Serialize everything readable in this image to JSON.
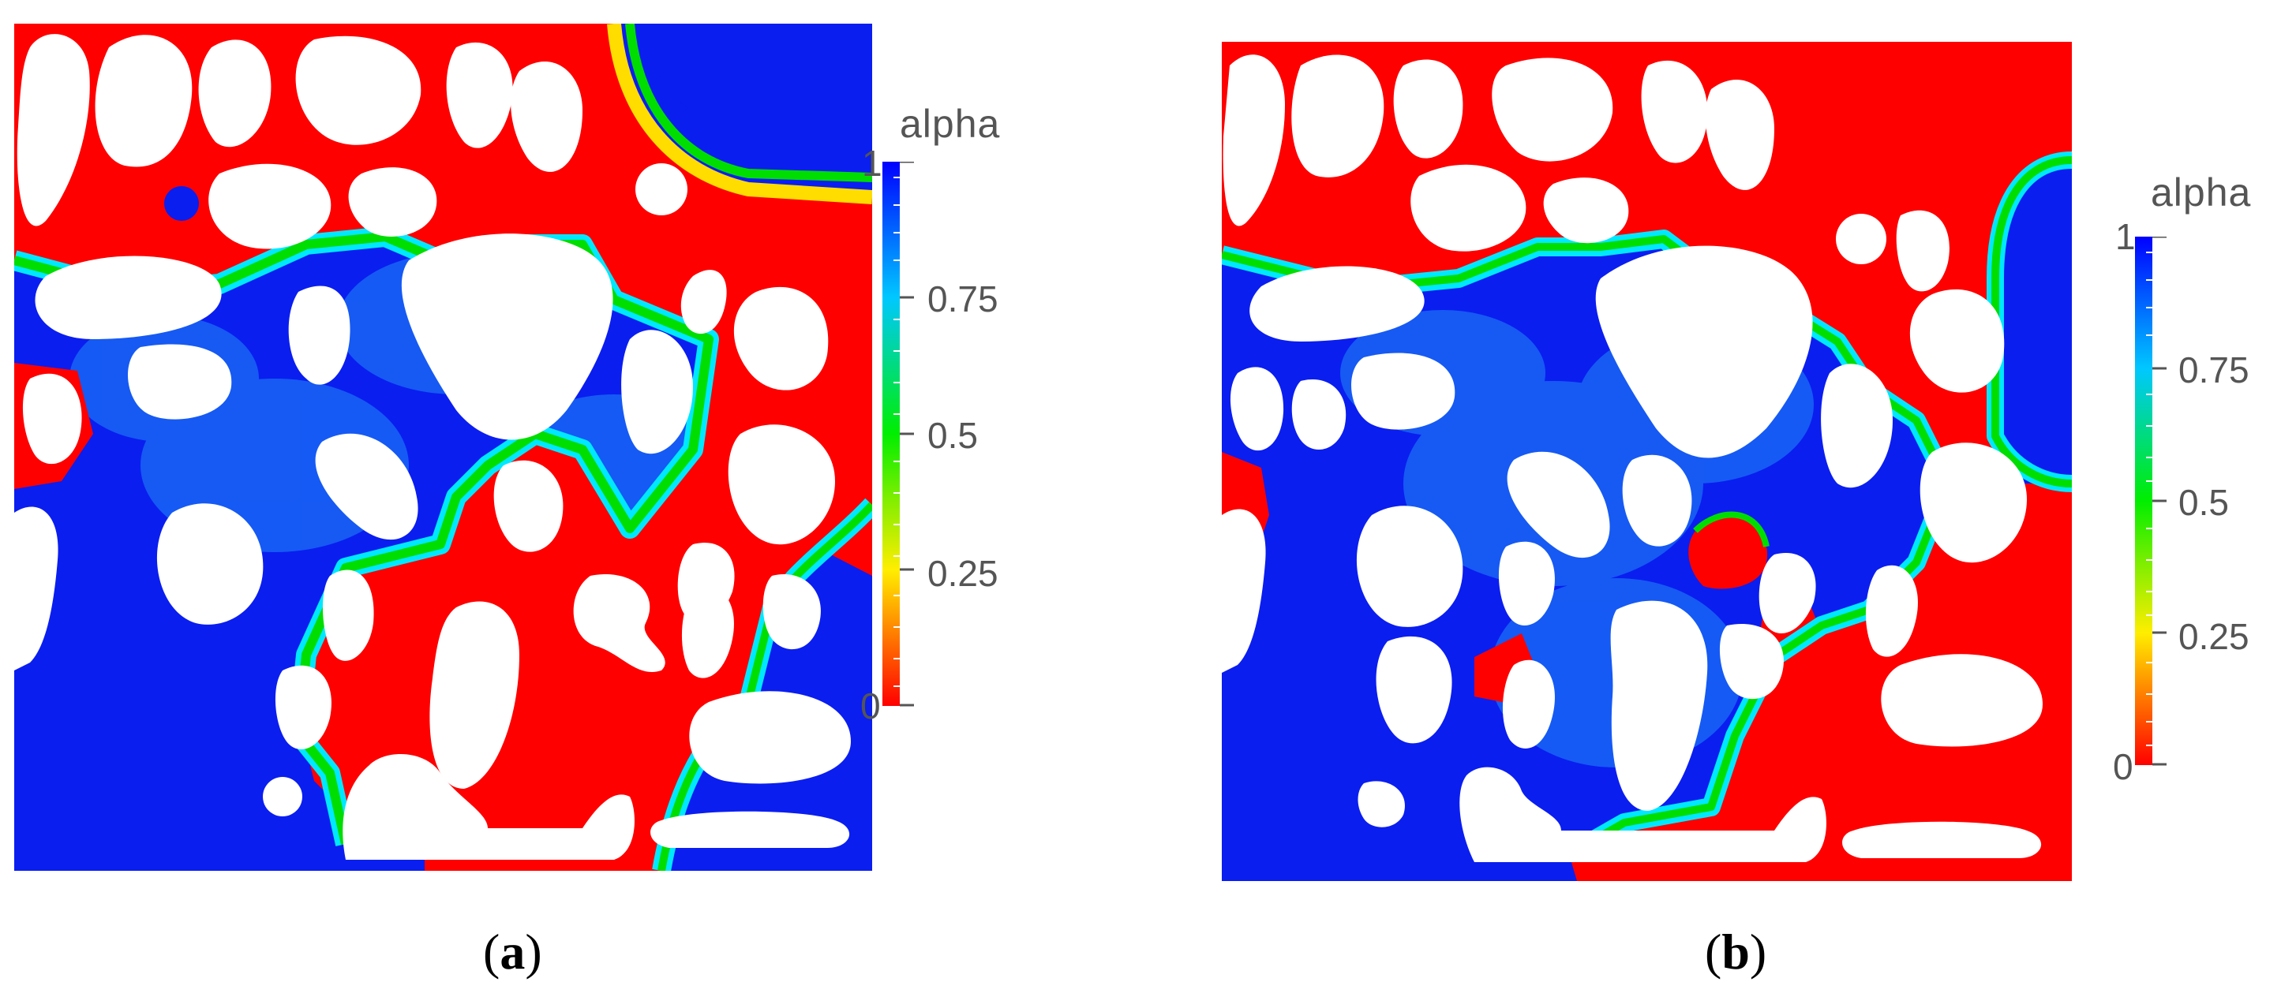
{
  "panels": [
    {
      "id": "a",
      "caption_open": "(",
      "caption_letter": "a",
      "caption_close": ")",
      "colorbar": {
        "title": "alpha",
        "ticks": [
          "1",
          "0.75",
          "0.5",
          "0.25",
          "0"
        ]
      }
    },
    {
      "id": "b",
      "caption_open": "(",
      "caption_letter": "b",
      "caption_close": ")",
      "colorbar": {
        "title": "alpha",
        "ticks": [
          "1",
          "0.75",
          "0.5",
          "0.25",
          "0"
        ]
      }
    }
  ],
  "colors": {
    "phase_0": "#ff0000",
    "phase_1": "#0000ff",
    "interface_green": "#00ee00",
    "interface_cyan": "#00ccff",
    "grain": "#ffffff"
  }
}
